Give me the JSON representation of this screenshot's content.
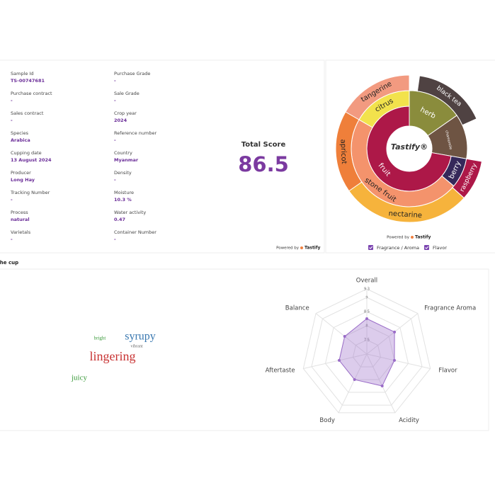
{
  "details": {
    "columns": [
      [
        {
          "label": "Sample Id",
          "value": "TS-00747681"
        },
        {
          "label": "Purchase contract",
          "value": "-"
        },
        {
          "label": "Sales contract",
          "value": "-"
        },
        {
          "label": "Species",
          "value": "Arabica"
        },
        {
          "label": "Cupping date",
          "value": "13 August 2024"
        },
        {
          "label": "Producer",
          "value": "Long Hay"
        },
        {
          "label": "Tracking Number",
          "value": "-"
        },
        {
          "label": "Process",
          "value": "natural"
        },
        {
          "label": "Varietals",
          "value": "-"
        }
      ],
      [
        {
          "label": "Purchase Grade",
          "value": "-"
        },
        {
          "label": "Sale Grade",
          "value": "-"
        },
        {
          "label": "Crop year",
          "value": "2024"
        },
        {
          "label": "Reference number",
          "value": "-"
        },
        {
          "label": "Country",
          "value": "Myanmar"
        },
        {
          "label": "Density",
          "value": "-"
        },
        {
          "label": "Moisture",
          "value": "10.3 %"
        },
        {
          "label": "Water activity",
          "value": "0.47"
        },
        {
          "label": "Container Number",
          "value": "-"
        }
      ]
    ],
    "score_label": "Total Score",
    "score": "86.5",
    "powered_by": "Powered by",
    "brand": "Tastify"
  },
  "sunburst": {
    "center_label": "Tastify®",
    "segments": [
      {
        "label": "herb",
        "color": "#8a8c3c"
      },
      {
        "label": "chamomile",
        "color": "#6e5443"
      },
      {
        "label": "fruit",
        "color": "#ad1848"
      },
      {
        "label": "berry",
        "color": "#35285a"
      },
      {
        "label": "stone fruit",
        "color": "#f4936c"
      },
      {
        "label": "citrus",
        "color": "#f2e24c"
      },
      {
        "label": "black tea",
        "color": "#4f4242"
      },
      {
        "label": "raspberry",
        "color": "#ad1848"
      },
      {
        "label": "nectarine",
        "color": "#f6b33c"
      },
      {
        "label": "apricot",
        "color": "#ef7f3a"
      },
      {
        "label": "tangerine",
        "color": "#f29a80"
      }
    ],
    "powered_by": "Powered by",
    "brand": "Tastify",
    "legend": [
      {
        "label": "Fragrance / Aroma",
        "color": "#7b44b0"
      },
      {
        "label": "Flavor",
        "color": "#7b44b0"
      }
    ]
  },
  "cup": {
    "title": "The cup",
    "words": [
      {
        "text": "bright",
        "color": "#3a9a3a"
      },
      {
        "text": "syrupy",
        "color": "#3a78b0"
      },
      {
        "text": "vibrant",
        "color": "#666666"
      },
      {
        "text": "lingering",
        "color": "#c83232"
      },
      {
        "text": "juicy",
        "color": "#3a9a3a"
      }
    ],
    "radar": {
      "type": "radar",
      "categories": [
        "Overall",
        "Fragrance Aroma",
        "Flavor",
        "Acidity",
        "Body",
        "Aftertaste",
        "Balance"
      ],
      "values": [
        8.25,
        8.25,
        8.0,
        8.25,
        8.0,
        8.0,
        8.0
      ],
      "rlim": [
        7,
        9.3
      ],
      "rticks": [
        7.5,
        8.0,
        8.5,
        9.0,
        9.3
      ],
      "color": "#9a6cc8"
    }
  }
}
